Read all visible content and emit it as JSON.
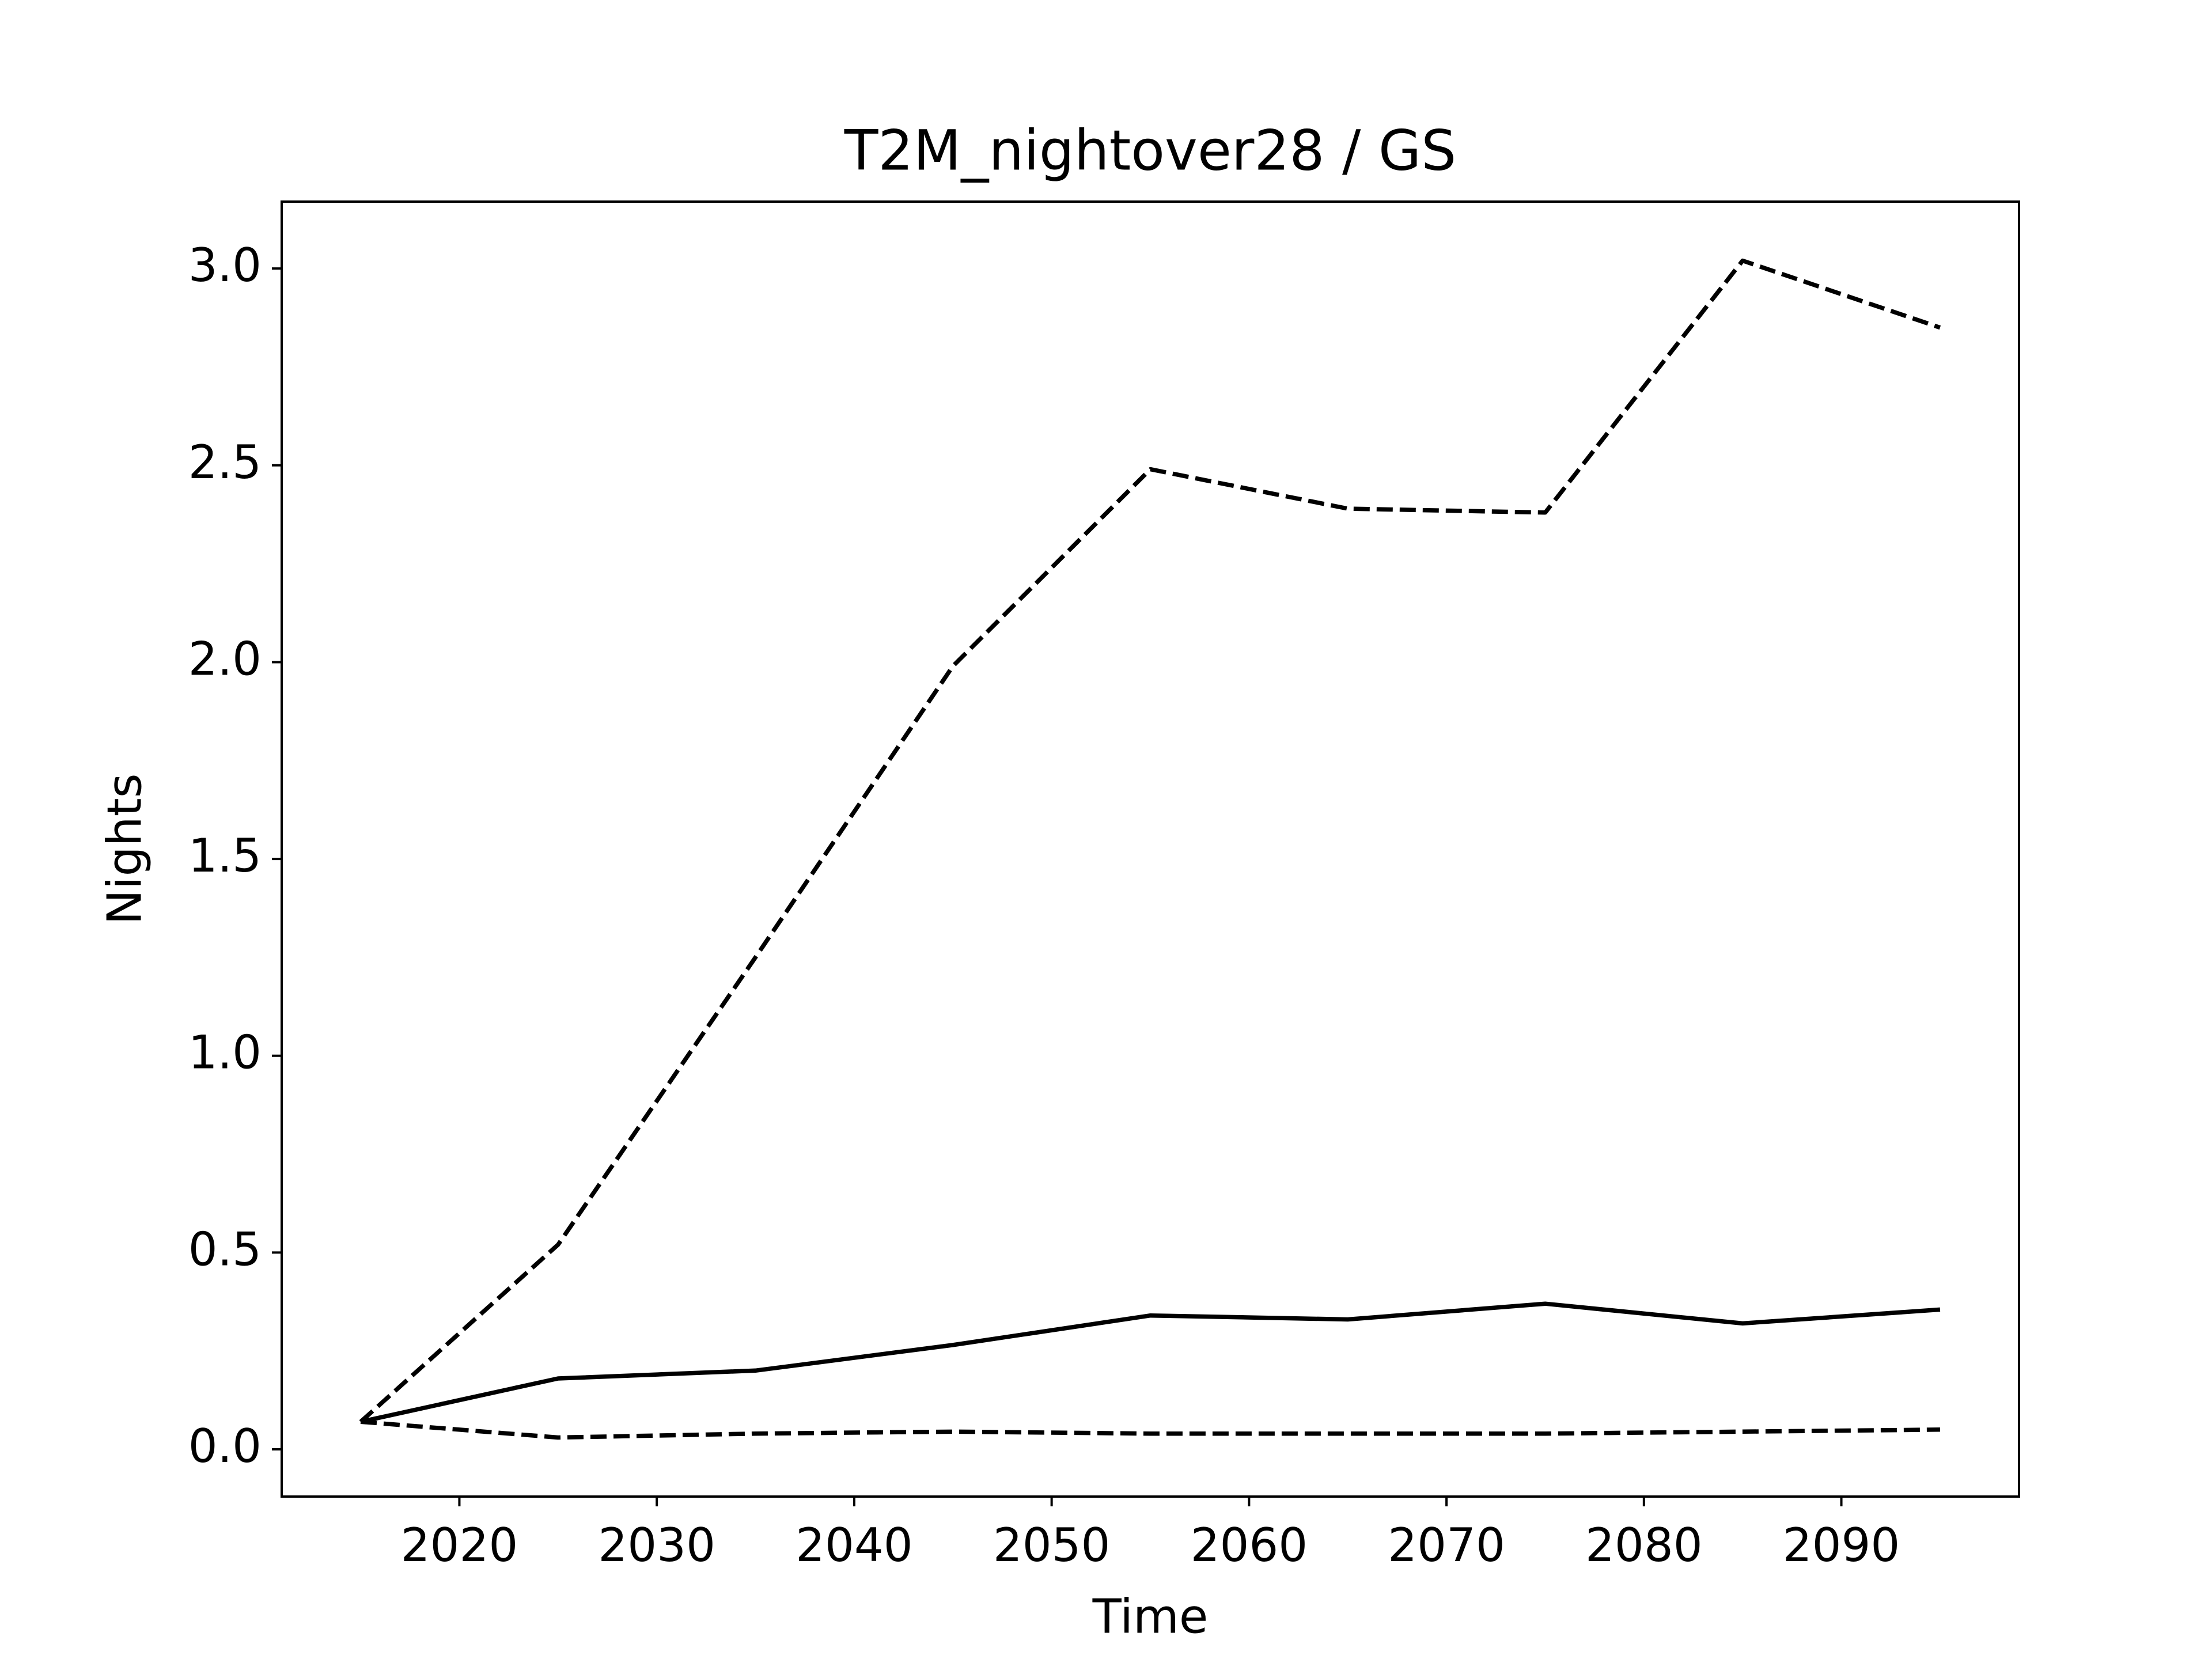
{
  "chart_data": {
    "type": "line",
    "title": "T2M_nightover28 / GS",
    "x_label": "Time",
    "y_label": "Nights",
    "x": [
      2015,
      2025,
      2035,
      2045,
      2055,
      2065,
      2075,
      2085,
      2095
    ],
    "series": [
      {
        "color": "#000000",
        "style": "dashed",
        "values": [
          0.07,
          0.52,
          1.25,
          1.99,
          2.49,
          2.39,
          2.38,
          3.02,
          2.85
        ]
      },
      {
        "color": "#000000",
        "style": "solid",
        "values": [
          0.07,
          0.18,
          0.2,
          0.265,
          0.34,
          0.33,
          0.37,
          0.32,
          0.355
        ]
      },
      {
        "color": "#000000",
        "style": "dashed",
        "values": [
          0.07,
          0.03,
          0.04,
          0.045,
          0.04,
          0.04,
          0.04,
          0.045,
          0.05
        ]
      }
    ],
    "xlim": [
      2011,
      2099
    ],
    "ylim": [
      -0.12,
      3.17
    ],
    "xticks": [
      2020,
      2030,
      2040,
      2050,
      2060,
      2070,
      2080,
      2090
    ],
    "yticks": [
      {
        "value": 0,
        "label": "0.0"
      },
      {
        "value": 0.5,
        "label": "0.5"
      },
      {
        "value": 1,
        "label": "1.0"
      },
      {
        "value": 1.5,
        "label": "1.5"
      },
      {
        "value": 2,
        "label": "2.0"
      },
      {
        "value": 2.5,
        "label": "2.5"
      },
      {
        "value": 3,
        "label": "3.0"
      }
    ],
    "grid": false
  }
}
